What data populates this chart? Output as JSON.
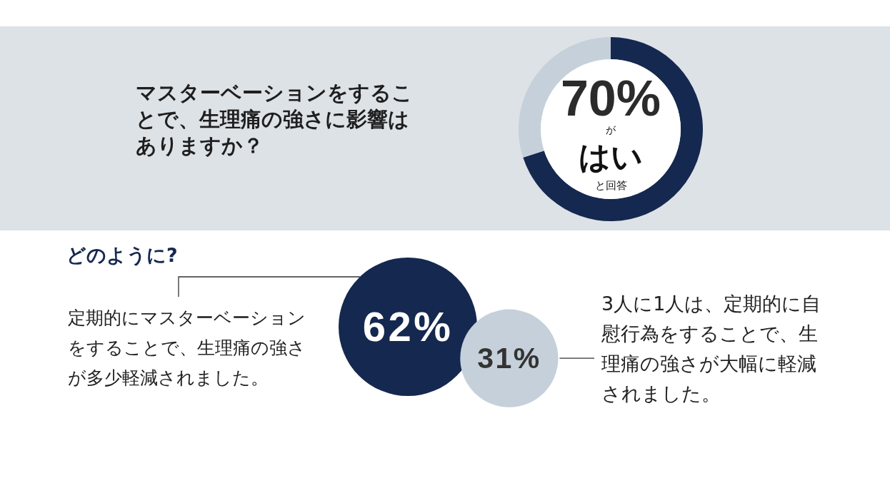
{
  "chart_data": [
    {
      "type": "donut",
      "title": "マスターベーションをすることで、生理痛の強さに影響はありますか？",
      "categories": [
        "はい",
        null
      ],
      "values": [
        70,
        30
      ],
      "colors": [
        "#15284f",
        "#c5d0da"
      ],
      "value_labels": [
        "70%",
        null
      ],
      "annotations": [
        "が",
        "と回答"
      ]
    },
    {
      "type": "other",
      "title": "どのように?",
      "categories": [
        "定期的にマスターベーションをすることで、生理痛の強さが多少軽減されました。",
        "3人に1人は、定期的に自慰行為をすることで、生理痛の強さが大幅に軽減されました。"
      ],
      "values": [
        62,
        31
      ],
      "colors": [
        "#15284f",
        "#c5d0da"
      ],
      "value_labels": [
        "62%",
        "31%"
      ]
    }
  ]
}
